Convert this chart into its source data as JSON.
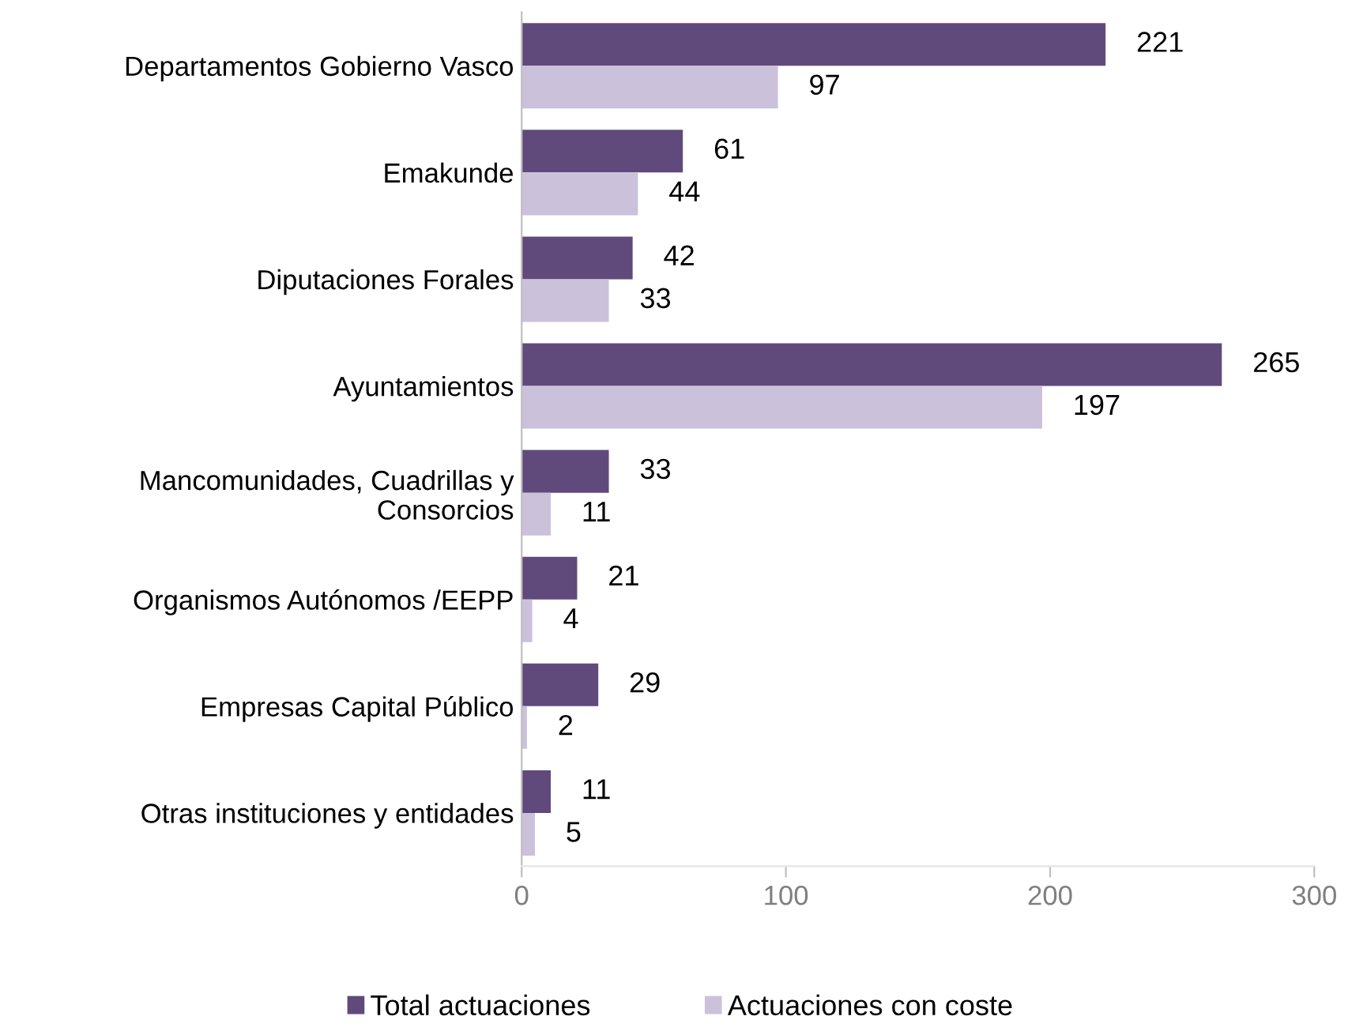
{
  "chart_data": {
    "type": "bar",
    "orientation": "horizontal",
    "categories": [
      "Departamentos Gobierno Vasco",
      "Emakunde",
      "Diputaciones Forales",
      "Ayuntamientos",
      "Mancomunidades, Cuadrillas y\nConsorcios",
      "Organismos Autónomos /EEPP",
      "Empresas Capital Público",
      "Otras instituciones y entidades"
    ],
    "series": [
      {
        "name": "Total actuaciones",
        "color": "#604a7b",
        "values": [
          221,
          61,
          42,
          265,
          33,
          21,
          29,
          11
        ]
      },
      {
        "name": "Actuaciones con coste",
        "color": "#ccc1da",
        "values": [
          97,
          44,
          33,
          197,
          11,
          4,
          2,
          5
        ]
      }
    ],
    "xlim": [
      0,
      300
    ],
    "xticks": [
      0,
      100,
      200,
      300
    ],
    "grid": false,
    "legend": "bottom",
    "data_labels": true
  }
}
